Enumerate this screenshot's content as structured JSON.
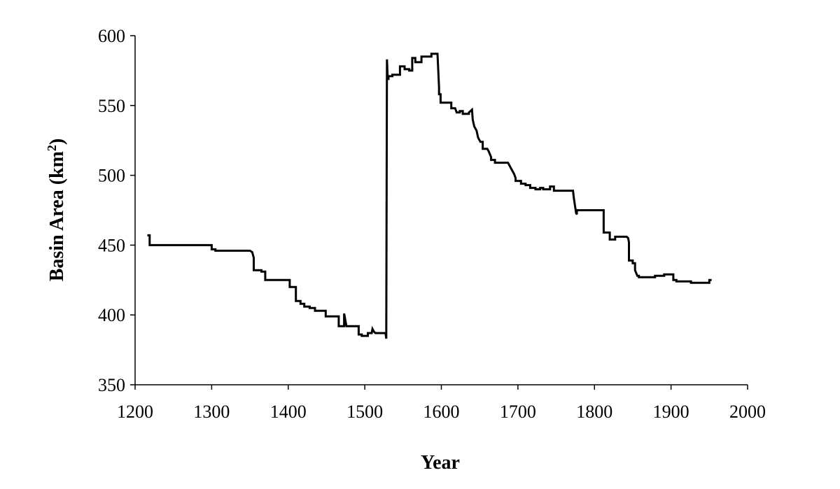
{
  "chart_data": {
    "type": "line",
    "title": "",
    "xlabel": "Year",
    "ylabel_main": "Basin Area (km",
    "ylabel_sup": "2",
    "ylabel_end": ")",
    "xlim": [
      1200,
      2000
    ],
    "ylim": [
      350,
      600
    ],
    "xticks": [
      1200,
      1300,
      1400,
      1500,
      1600,
      1700,
      1800,
      1900,
      2000
    ],
    "yticks": [
      350,
      400,
      450,
      500,
      550,
      600
    ],
    "grid": false,
    "line_color": "#000000",
    "series": [
      {
        "x": [
          1216,
          1219,
          1219,
          1300,
          1300,
          1305,
          1305,
          1350,
          1353,
          1355,
          1355,
          1365,
          1365,
          1370,
          1370,
          1402,
          1402,
          1410,
          1410,
          1416,
          1416,
          1421,
          1421,
          1428,
          1428,
          1435,
          1435,
          1449,
          1449,
          1466,
          1466,
          1473,
          1473,
          1476,
          1477,
          1480,
          1480,
          1492,
          1492,
          1496,
          1496,
          1504,
          1504,
          1509,
          1510,
          1512,
          1514,
          1515,
          1515,
          1527,
          1528,
          1529,
          1530,
          1531,
          1531,
          1536,
          1536,
          1546,
          1546,
          1552,
          1552,
          1558,
          1558,
          1562,
          1562,
          1566,
          1566,
          1574,
          1574,
          1580,
          1580,
          1587,
          1587,
          1593,
          1595,
          1597,
          1597,
          1599,
          1599,
          1613,
          1613,
          1618,
          1620,
          1624,
          1624,
          1628,
          1628,
          1636,
          1636,
          1640,
          1641,
          1643,
          1646,
          1648,
          1651,
          1654,
          1654,
          1660,
          1662,
          1665,
          1665,
          1670,
          1670,
          1687,
          1690,
          1693,
          1695,
          1697,
          1697,
          1704,
          1704,
          1710,
          1710,
          1716,
          1716,
          1723,
          1723,
          1729,
          1729,
          1733,
          1733,
          1742,
          1742,
          1747,
          1747,
          1770,
          1772,
          1773,
          1776,
          1777,
          1777,
          1807,
          1807,
          1812,
          1812,
          1820,
          1820,
          1827,
          1827,
          1842,
          1844,
          1845,
          1845,
          1850,
          1850,
          1853,
          1853,
          1856,
          1858,
          1858,
          1879,
          1879,
          1891,
          1891,
          1903,
          1903,
          1907,
          1907,
          1926,
          1926,
          1950,
          1950,
          1953
        ],
        "y": [
          457,
          457,
          450,
          450,
          447,
          447,
          446,
          446,
          445,
          441,
          432,
          432,
          431,
          431,
          425,
          425,
          420,
          420,
          410,
          410,
          408,
          408,
          406,
          406,
          405,
          405,
          403,
          403,
          399,
          399,
          392,
          392,
          401,
          392,
          392,
          392,
          392,
          392,
          386,
          386,
          385,
          385,
          387,
          387,
          390,
          388,
          387,
          387,
          387,
          387,
          383,
          583,
          569,
          569,
          571,
          571,
          572,
          572,
          578,
          578,
          576,
          576,
          575,
          575,
          584,
          584,
          581,
          581,
          585,
          585,
          585,
          585,
          587,
          587,
          587,
          563,
          558,
          558,
          552,
          552,
          548,
          548,
          545,
          545,
          546,
          546,
          544,
          544,
          545,
          547,
          540,
          535,
          532,
          527,
          524,
          524,
          519,
          519,
          517,
          513,
          511,
          511,
          509,
          509,
          506,
          503,
          501,
          498,
          496,
          496,
          494,
          494,
          493,
          493,
          491,
          491,
          490,
          490,
          491,
          491,
          490,
          490,
          492,
          492,
          489,
          489,
          489,
          484,
          473,
          472,
          475,
          475,
          475,
          475,
          459,
          459,
          454,
          454,
          456,
          456,
          455,
          452,
          439,
          439,
          437,
          437,
          432,
          428,
          428,
          427,
          427,
          428,
          428,
          429,
          429,
          425,
          425,
          424,
          424,
          423,
          423,
          425,
          425
        ]
      }
    ]
  }
}
